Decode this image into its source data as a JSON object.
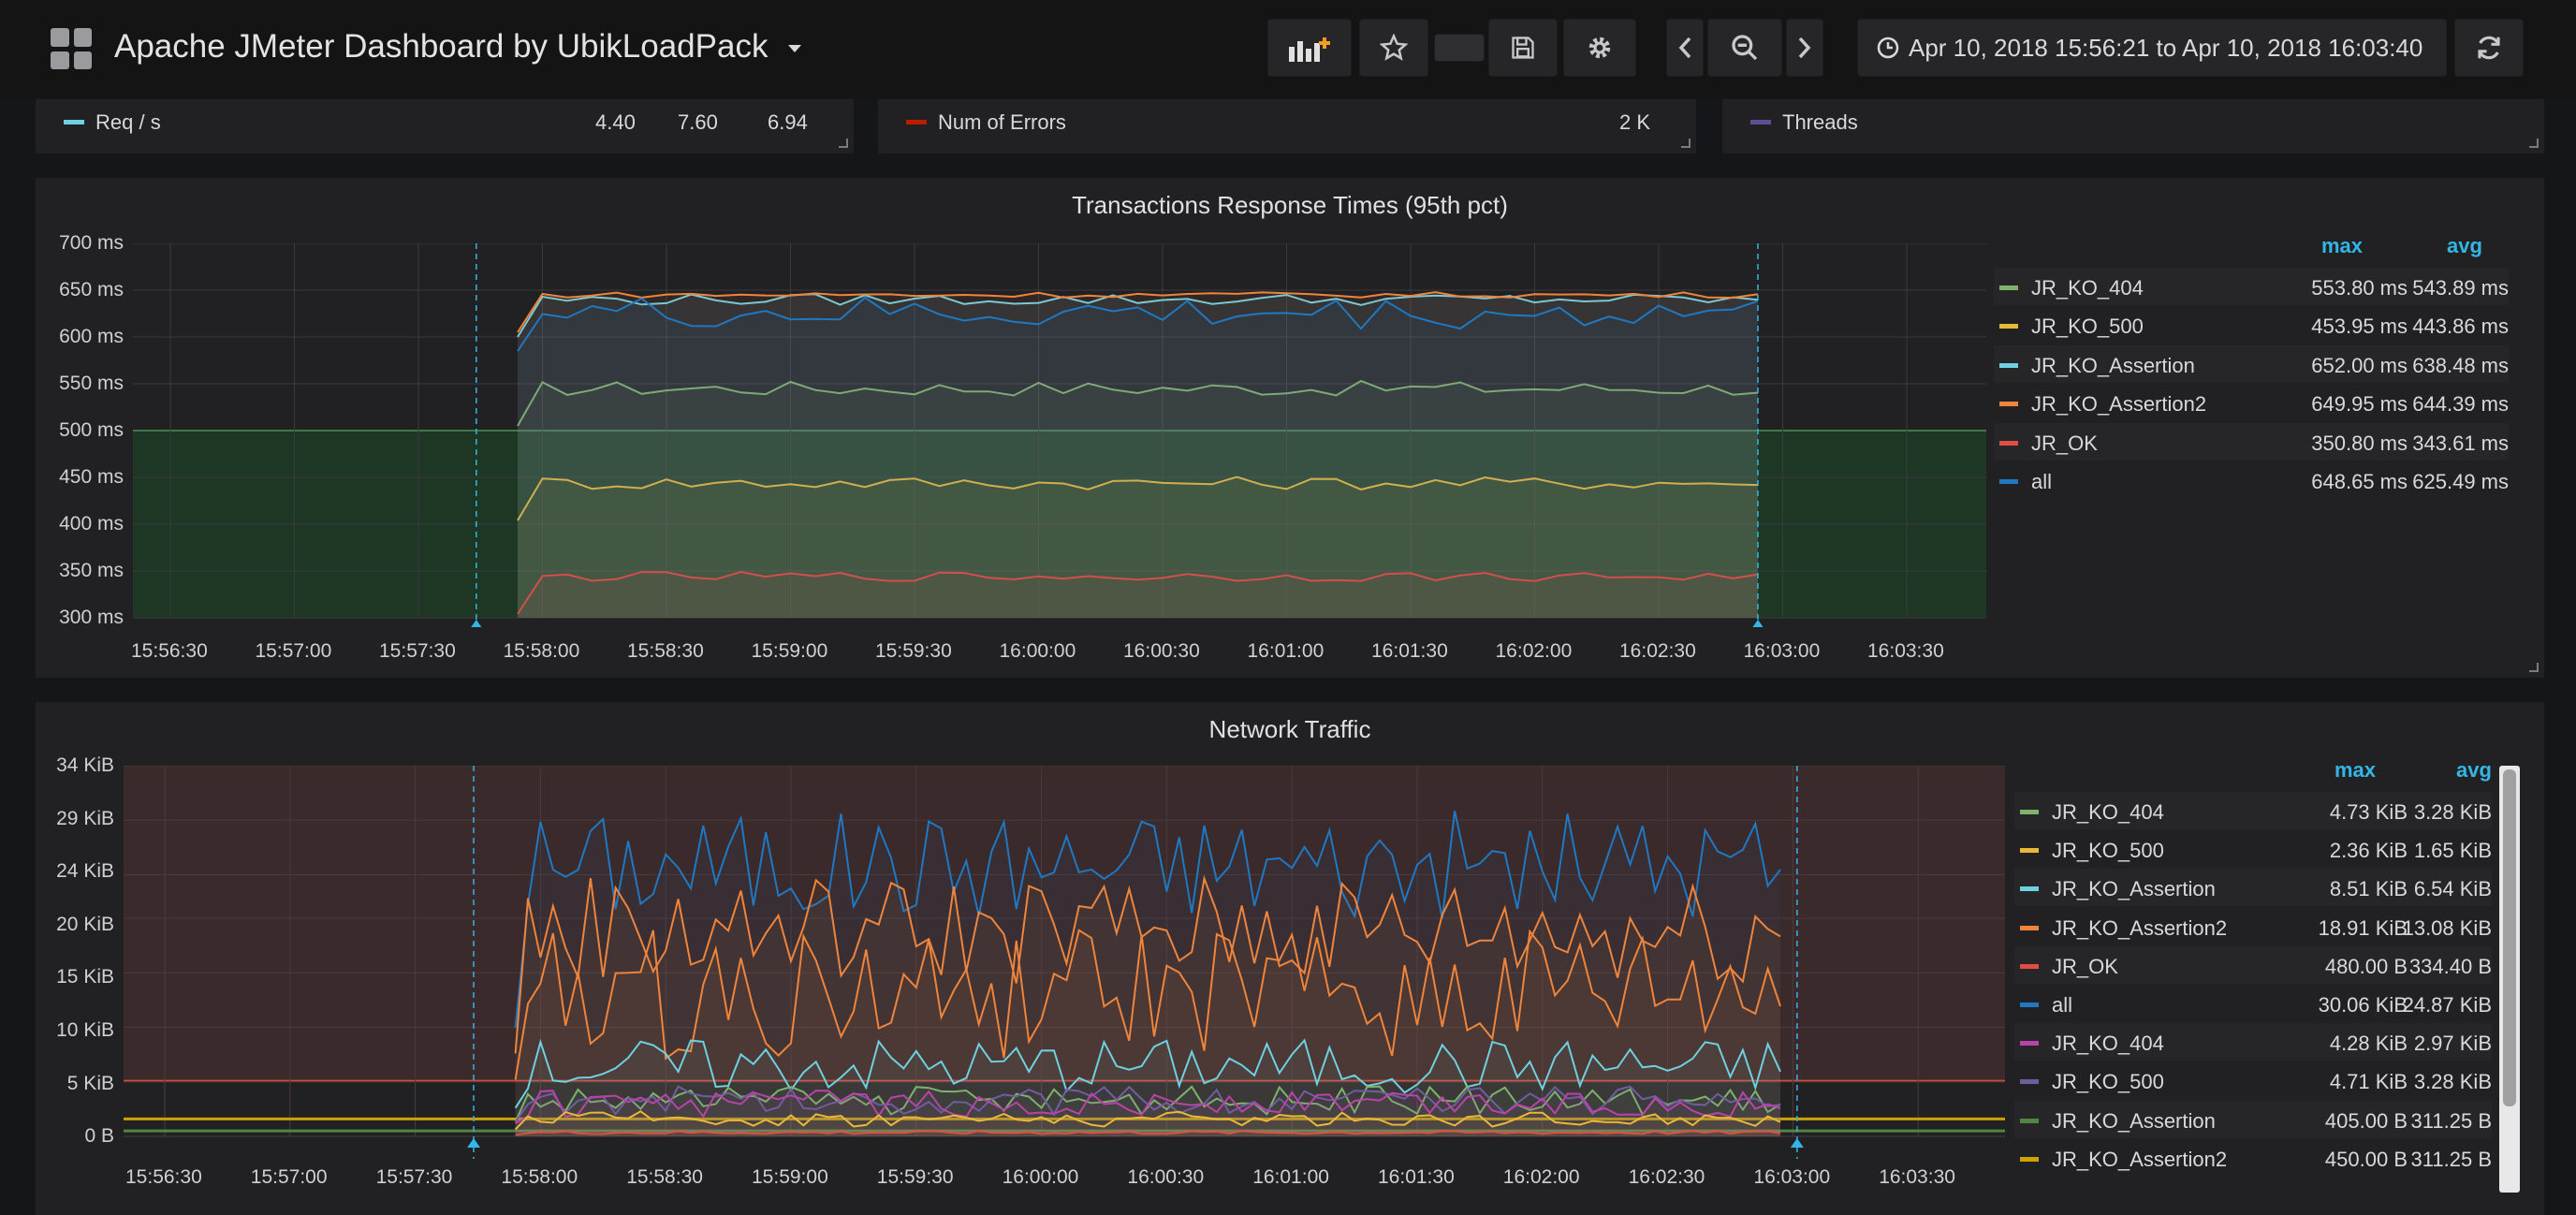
{
  "header": {
    "title": "Apache JMeter Dashboard by UbikLoadPack",
    "time_range": "Apr 10, 2018 15:56:21 to Apr 10, 2018 16:03:40"
  },
  "stats": {
    "req": {
      "label": "Req / s",
      "v1": "4.40",
      "v2": "7.60",
      "v3": "6.94",
      "color": "#6ed0e0"
    },
    "errors": {
      "label": "Num of Errors",
      "v1": "2 K",
      "color": "#bf1b00"
    },
    "threads": {
      "label": "Threads",
      "color": "#614d93"
    }
  },
  "rt_panel": {
    "title": "Transactions Response Times (95th pct)",
    "yticks": [
      "700 ms",
      "650 ms",
      "600 ms",
      "550 ms",
      "500 ms",
      "450 ms",
      "400 ms",
      "350 ms",
      "300 ms"
    ],
    "xticks": [
      "15:56:30",
      "15:57:00",
      "15:57:30",
      "15:58:00",
      "15:58:30",
      "15:59:00",
      "15:59:30",
      "16:00:00",
      "16:00:30",
      "16:01:00",
      "16:01:30",
      "16:02:00",
      "16:02:30",
      "16:03:00",
      "16:03:30"
    ],
    "legend_head": {
      "max": "max",
      "avg": "avg"
    },
    "legend": [
      {
        "name": "JR_KO_404",
        "max": "553.80 ms",
        "avg": "543.89 ms",
        "color": "#7eb26d"
      },
      {
        "name": "JR_KO_500",
        "max": "453.95 ms",
        "avg": "443.86 ms",
        "color": "#eab839"
      },
      {
        "name": "JR_KO_Assertion",
        "max": "652.00 ms",
        "avg": "638.48 ms",
        "color": "#6ed0e0"
      },
      {
        "name": "JR_KO_Assertion2",
        "max": "649.95 ms",
        "avg": "644.39 ms",
        "color": "#ef843c"
      },
      {
        "name": "JR_OK",
        "max": "350.80 ms",
        "avg": "343.61 ms",
        "color": "#e24d42"
      },
      {
        "name": "all",
        "max": "648.65 ms",
        "avg": "625.49 ms",
        "color": "#1f78c1"
      }
    ]
  },
  "net_panel": {
    "title": "Network Traffic",
    "yticks": [
      "34 KiB",
      "29 KiB",
      "24 KiB",
      "20 KiB",
      "15 KiB",
      "10 KiB",
      "5 KiB",
      "0 B"
    ],
    "xticks": [
      "15:56:30",
      "15:57:00",
      "15:57:30",
      "15:58:00",
      "15:58:30",
      "15:59:00",
      "15:59:30",
      "16:00:00",
      "16:00:30",
      "16:01:00",
      "16:01:30",
      "16:02:00",
      "16:02:30",
      "16:03:00",
      "16:03:30"
    ],
    "legend_head": {
      "max": "max",
      "avg": "avg"
    },
    "legend": [
      {
        "name": "JR_KO_404",
        "max": "4.73 KiB",
        "avg": "3.28 KiB",
        "color": "#7eb26d"
      },
      {
        "name": "JR_KO_500",
        "max": "2.36 KiB",
        "avg": "1.65 KiB",
        "color": "#eab839"
      },
      {
        "name": "JR_KO_Assertion",
        "max": "8.51 KiB",
        "avg": "6.54 KiB",
        "color": "#6ed0e0"
      },
      {
        "name": "JR_KO_Assertion2",
        "max": "18.91 KiB",
        "avg": "13.08 KiB",
        "color": "#ef843c"
      },
      {
        "name": "JR_OK",
        "max": "480.00 B",
        "avg": "334.40 B",
        "color": "#e24d42"
      },
      {
        "name": "all",
        "max": "30.06 KiB",
        "avg": "24.87 KiB",
        "color": "#1f78c1"
      },
      {
        "name": "JR_KO_404",
        "max": "4.28 KiB",
        "avg": "2.97 KiB",
        "color": "#ba43a9"
      },
      {
        "name": "JR_KO_500",
        "max": "4.71 KiB",
        "avg": "3.28 KiB",
        "color": "#705da0"
      },
      {
        "name": "JR_KO_Assertion",
        "max": "405.00 B",
        "avg": "311.25 B",
        "color": "#508642"
      },
      {
        "name": "JR_KO_Assertion2",
        "max": "450.00 B",
        "avg": "311.25 B",
        "color": "#cca300"
      }
    ]
  },
  "icons": {
    "add_panel": "add-panel-icon",
    "star": "star-icon",
    "save": "save-icon",
    "settings": "gear-icon",
    "prev": "chevron-left-icon",
    "zoom": "zoom-out-icon",
    "next": "chevron-right-icon",
    "clock": "clock-icon",
    "refresh": "refresh-icon"
  }
}
